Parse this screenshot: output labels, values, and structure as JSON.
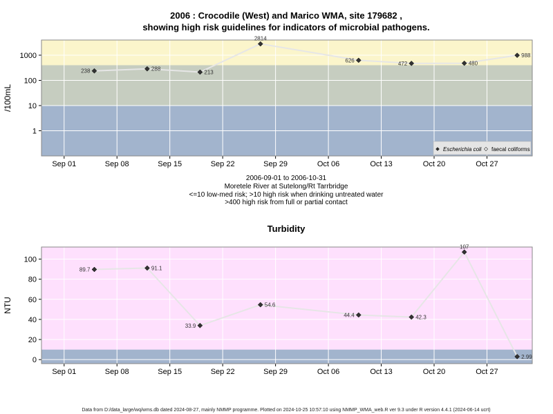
{
  "title_line1": "2006 : Crocodile (West) and Marico WMA, site 179682 ,",
  "title_line2": "showing high risk guidelines for indicators of microbial pathogens.",
  "notes": [
    "2006-09-01 to 2006-10-31",
    "Moretele River at Sutelong/Rt Tarrbridge",
    "<=10 low-med risk; >10 high risk when drinking untreated water",
    ">400 high risk from full or partial contact"
  ],
  "footer": "Data from D:/data_large/wq/wms.db dated 2024-08-27, mainly NMMP programme. Plotted on 2024-10-25 10:57:10 using NMMP_WMA_web.R ver 9.3 under R version 4.4.1 (2024-06-14 ucrt)",
  "colors": {
    "low_band": "#a2b4cd",
    "mid_band": "#c6cdc0",
    "high_band": "#fbf5cb",
    "turb_high": "#fee0fd",
    "turb_low": "#a2b4cd",
    "line": "#e6e6e6",
    "point": "#333333"
  },
  "chart_data": [
    {
      "type": "line",
      "title": "",
      "xlabel": "",
      "ylabel": "/100mL",
      "yscale": "log",
      "ylim": [
        0.1,
        4000
      ],
      "xlim": [
        "2006-08-29",
        "2006-11-02"
      ],
      "x_ticks": [
        "Sep 01",
        "Sep 08",
        "Sep 15",
        "Sep 22",
        "Sep 29",
        "Oct 06",
        "Oct 13",
        "Oct 20",
        "Oct 27"
      ],
      "x_tick_dates": [
        "2006-09-01",
        "2006-09-08",
        "2006-09-15",
        "2006-09-22",
        "2006-09-29",
        "2006-10-06",
        "2006-10-13",
        "2006-10-20",
        "2006-10-27"
      ],
      "y_ticks": [
        "1",
        "10",
        "100",
        "1000"
      ],
      "bands": [
        {
          "from": 0.1,
          "to": 10,
          "color": "#a2b4cd"
        },
        {
          "from": 10,
          "to": 400,
          "color": "#c6cdc0"
        },
        {
          "from": 400,
          "to": 4000,
          "color": "#fbf5cb"
        }
      ],
      "grid": true,
      "legend_position": "bottom-right",
      "legend": [
        {
          "label": "Escherichia coli",
          "marker": "filled-diamond"
        },
        {
          "label": "faecal coliforms",
          "marker": "open-diamond"
        }
      ],
      "series": [
        {
          "name": "Escherichia coli",
          "x": [
            "2006-09-05",
            "2006-09-12",
            "2006-09-19",
            "2006-09-27",
            "2006-10-10",
            "2006-10-17",
            "2006-10-24",
            "2006-10-31"
          ],
          "y": [
            238,
            288,
            213,
            2814,
            626,
            472,
            480,
            988
          ],
          "labels": [
            "238",
            "288",
            "213",
            "2814",
            "626",
            "472",
            "480",
            "988"
          ],
          "label_side": [
            "left",
            "right",
            "right",
            "top",
            "left",
            "left",
            "right",
            "right"
          ]
        }
      ]
    },
    {
      "type": "line",
      "title": "Turbidity",
      "xlabel": "",
      "ylabel": "NTU",
      "yscale": "linear",
      "ylim": [
        -4,
        112
      ],
      "xlim": [
        "2006-08-29",
        "2006-11-02"
      ],
      "x_ticks": [
        "Sep 01",
        "Sep 08",
        "Sep 15",
        "Sep 22",
        "Sep 29",
        "Oct 06",
        "Oct 13",
        "Oct 20",
        "Oct 27"
      ],
      "x_tick_dates": [
        "2006-09-01",
        "2006-09-08",
        "2006-09-15",
        "2006-09-22",
        "2006-09-29",
        "2006-10-06",
        "2006-10-13",
        "2006-10-20",
        "2006-10-27"
      ],
      "y_ticks": [
        "0",
        "20",
        "40",
        "60",
        "80",
        "100"
      ],
      "bands": [
        {
          "from": -4,
          "to": 10,
          "color": "#a2b4cd"
        },
        {
          "from": 10,
          "to": 112,
          "color": "#fee0fd"
        }
      ],
      "grid": true,
      "series": [
        {
          "x": [
            "2006-09-05",
            "2006-09-12",
            "2006-09-19",
            "2006-09-27",
            "2006-10-10",
            "2006-10-17",
            "2006-10-24",
            "2006-10-31"
          ],
          "y": [
            89.7,
            91.1,
            33.9,
            54.6,
            44.4,
            42.3,
            107,
            2.99
          ],
          "labels": [
            "89.7",
            "91.1",
            "33.9",
            "54.6",
            "44.4",
            "42.3",
            "107",
            "2.99"
          ],
          "label_side": [
            "left",
            "right",
            "left",
            "right",
            "left",
            "right",
            "top",
            "right"
          ]
        }
      ]
    }
  ]
}
